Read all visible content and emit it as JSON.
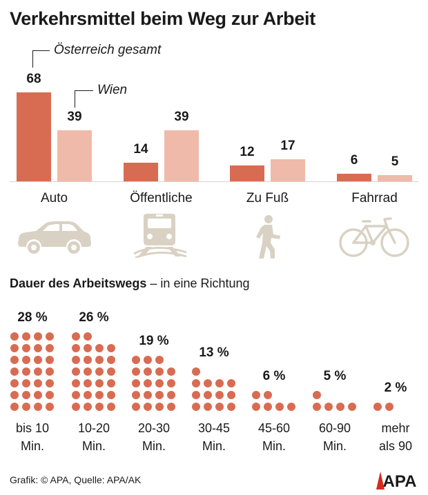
{
  "title": "Verkehrsmittel beim Weg zur Arbeit",
  "legend": {
    "austria": "Österreich gesamt",
    "vienna": "Wien"
  },
  "colors": {
    "austria": "#d86c53",
    "vienna": "#efbaa9",
    "icon": "#d9d1c3",
    "dots": "#d86c53",
    "logo": "#d42b1e"
  },
  "chart_data": [
    {
      "type": "bar",
      "title": "Verkehrsmittel beim Weg zur Arbeit",
      "categories": [
        "Auto",
        "Öffentliche",
        "Zu Fuß",
        "Fahrrad"
      ],
      "series": [
        {
          "name": "Österreich gesamt",
          "values": [
            68,
            14,
            12,
            6
          ]
        },
        {
          "name": "Wien",
          "values": [
            39,
            39,
            17,
            5
          ]
        }
      ],
      "value_labels": [
        [
          "68",
          "14",
          "12",
          "6"
        ],
        [
          "39",
          "39",
          "17",
          "5"
        ]
      ],
      "icons": [
        "car-icon",
        "train-icon",
        "pedestrian-icon",
        "bicycle-icon"
      ],
      "ylim": [
        0,
        70
      ]
    },
    {
      "type": "bar",
      "title": "Dauer des Arbeitswegs",
      "subtitle": "– in eine Richtung",
      "categories": [
        "bis 10 Min.",
        "10-20 Min.",
        "20-30 Min.",
        "30-45 Min.",
        "45-60 Min.",
        "60-90 Min.",
        "mehr als 90"
      ],
      "category_lines": [
        [
          "bis 10",
          "Min."
        ],
        [
          "10-20",
          "Min."
        ],
        [
          "20-30",
          "Min."
        ],
        [
          "30-45",
          "Min."
        ],
        [
          "45-60",
          "Min."
        ],
        [
          "60-90",
          "Min."
        ],
        [
          "mehr",
          "als 90"
        ]
      ],
      "values": [
        28,
        26,
        19,
        13,
        6,
        5,
        2
      ],
      "value_labels": [
        "28 %",
        "26 %",
        "19 %",
        "13 %",
        "6 %",
        "5 %",
        "2 %"
      ],
      "unit": "%"
    }
  ],
  "footer": {
    "text": "Grafik: © APA, Quelle: APA/AK",
    "logo": "APA"
  }
}
